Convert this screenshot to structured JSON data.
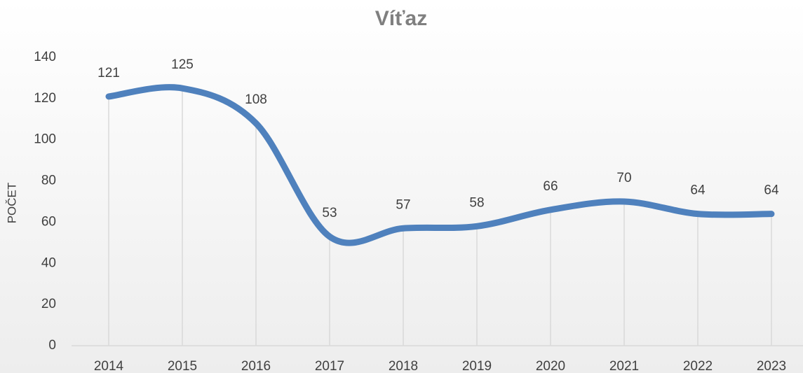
{
  "chart_data": {
    "type": "line",
    "title": "Víťaz",
    "y_label": "POČET",
    "categories": [
      "2014",
      "2015",
      "2016",
      "2017",
      "2018",
      "2019",
      "2020",
      "2021",
      "2022",
      "2023"
    ],
    "series": [
      {
        "name": "Víťaz",
        "color": "#4f81bd",
        "values": [
          121,
          125,
          108,
          53,
          57,
          58,
          66,
          70,
          64,
          64
        ]
      }
    ],
    "ylim": [
      0,
      140
    ],
    "yticks": [
      0,
      20,
      40,
      60,
      80,
      100,
      120,
      140
    ],
    "smooth": true,
    "drop_lines": true
  }
}
